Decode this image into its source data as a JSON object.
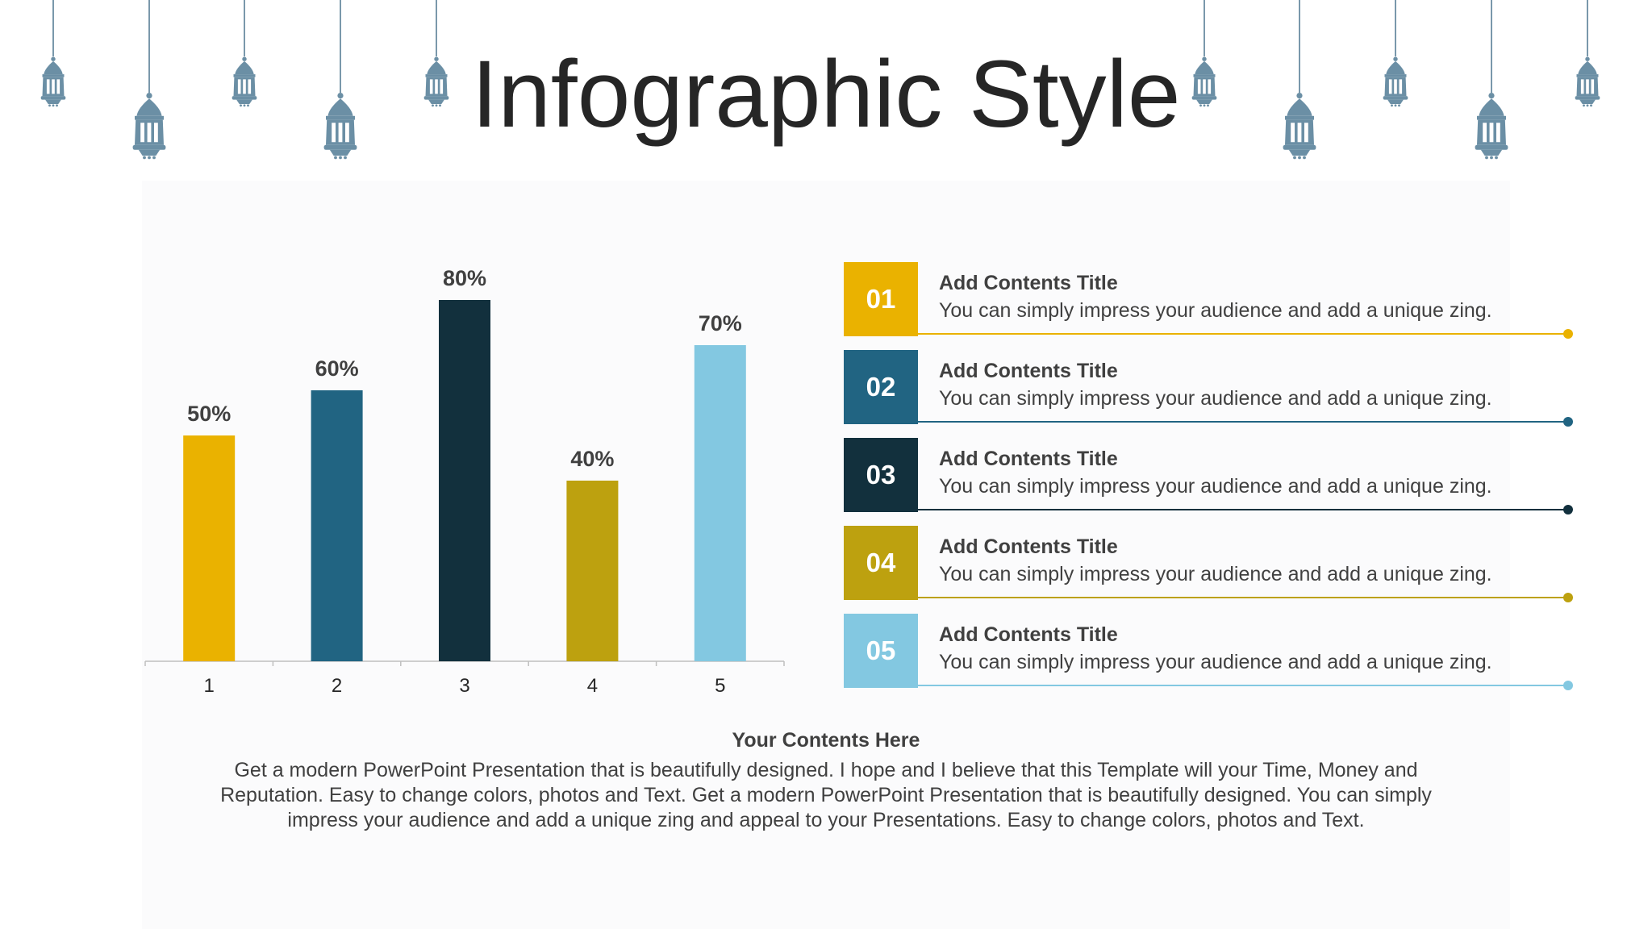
{
  "title": "Infographic Style",
  "colors": {
    "yellow": "#EAB200",
    "blue": "#216482",
    "navy": "#12303D",
    "olive": "#BDA10F",
    "light_blue": "#83C8E1",
    "lantern": "#6B8FA5"
  },
  "chart_data": {
    "type": "bar",
    "categories": [
      "1",
      "2",
      "3",
      "4",
      "5"
    ],
    "values": [
      50,
      60,
      80,
      40,
      70
    ],
    "data_labels": [
      "50%",
      "60%",
      "80%",
      "40%",
      "70%"
    ],
    "bar_colors": [
      "#EAB200",
      "#216482",
      "#12303D",
      "#BDA10F",
      "#83C8E1"
    ],
    "ylim": [
      0,
      80
    ],
    "grid": false,
    "legend": "none"
  },
  "items": [
    {
      "num": "01",
      "title": "Add Contents Title",
      "desc": "You can simply impress your audience and add a unique zing.",
      "color": "#EAB200"
    },
    {
      "num": "02",
      "title": "Add Contents Title",
      "desc": "You can simply impress your audience and add a unique zing.",
      "color": "#216482"
    },
    {
      "num": "03",
      "title": "Add Contents Title",
      "desc": "You can simply impress your audience and add a unique zing.",
      "color": "#12303D"
    },
    {
      "num": "04",
      "title": "Add Contents Title",
      "desc": "You can simply impress your audience and add a unique zing.",
      "color": "#BDA10F"
    },
    {
      "num": "05",
      "title": "Add Contents Title",
      "desc": "You can simply impress your audience and add a unique zing.",
      "color": "#83C8E1"
    }
  ],
  "footer": {
    "title": "Your Contents Here",
    "text": "Get a modern PowerPoint  Presentation that is beautifully designed. I hope and I believe that this Template will your Time, Money and Reputation. Easy to change colors, photos and Text. Get a modern PowerPoint  Presentation that is beautifully designed. You can simply impress your audience and add a unique zing and appeal to your Presentations. Easy to change colors, photos and Text."
  }
}
